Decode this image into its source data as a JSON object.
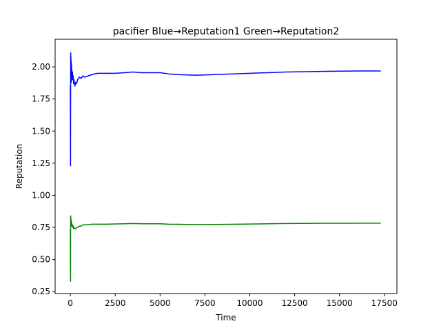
{
  "chart_data": {
    "type": "line",
    "title": "pacifier Blue→Reputation1 Green→Reputation2",
    "xlabel": "Time",
    "ylabel": "Reputation",
    "xlim": [
      -850,
      18200
    ],
    "ylim": [
      0.235,
      2.215
    ],
    "grid": false,
    "xticks": [
      0,
      2500,
      5000,
      7500,
      10000,
      12500,
      15000,
      17500
    ],
    "xtick_labels": [
      "0",
      "2500",
      "5000",
      "7500",
      "10000",
      "12500",
      "15000",
      "17500"
    ],
    "yticks": [
      0.25,
      0.5,
      0.75,
      1.0,
      1.25,
      1.5,
      1.75,
      2.0
    ],
    "ytick_labels": [
      "0.25",
      "0.50",
      "0.75",
      "1.00",
      "1.25",
      "1.50",
      "1.75",
      "2.00"
    ],
    "series": [
      {
        "color": "#0000ff",
        "x": [
          0,
          5,
          10,
          15,
          20,
          25,
          30,
          35,
          40,
          50,
          60,
          70,
          80,
          100,
          120,
          140,
          160,
          180,
          200,
          250,
          300,
          350,
          400,
          500,
          600,
          700,
          800,
          1000,
          1200,
          1500,
          2000,
          2500,
          3000,
          3500,
          4000,
          4500,
          5000,
          5500,
          6000,
          6500,
          7000,
          7500,
          8000,
          9000,
          10000,
          11000,
          12000,
          13000,
          14000,
          15000,
          16000,
          17300
        ],
        "y": [
          1.85,
          1.4,
          1.23,
          1.9,
          2.11,
          1.95,
          2.08,
          1.92,
          2.05,
          1.88,
          2.03,
          1.9,
          1.98,
          1.93,
          1.96,
          1.9,
          1.93,
          1.87,
          1.9,
          1.85,
          1.88,
          1.87,
          1.9,
          1.92,
          1.91,
          1.93,
          1.92,
          1.93,
          1.94,
          1.95,
          1.95,
          1.95,
          1.955,
          1.96,
          1.955,
          1.955,
          1.955,
          1.945,
          1.94,
          1.937,
          1.935,
          1.937,
          1.94,
          1.945,
          1.95,
          1.955,
          1.96,
          1.962,
          1.965,
          1.967,
          1.968,
          1.968
        ]
      },
      {
        "color": "#008000",
        "x": [
          0,
          5,
          10,
          15,
          20,
          25,
          30,
          35,
          40,
          50,
          60,
          70,
          80,
          100,
          120,
          140,
          160,
          180,
          200,
          250,
          300,
          350,
          400,
          500,
          600,
          700,
          800,
          1000,
          1200,
          1500,
          2000,
          2500,
          3000,
          3500,
          4000,
          4500,
          5000,
          5500,
          6000,
          6500,
          7000,
          7500,
          8000,
          9000,
          10000,
          11000,
          12000,
          13000,
          14000,
          15000,
          16000,
          17300
        ],
        "y": [
          0.73,
          0.49,
          0.33,
          0.84,
          0.79,
          0.83,
          0.77,
          0.81,
          0.76,
          0.8,
          0.76,
          0.79,
          0.77,
          0.76,
          0.77,
          0.75,
          0.76,
          0.74,
          0.75,
          0.74,
          0.74,
          0.75,
          0.75,
          0.76,
          0.76,
          0.77,
          0.77,
          0.77,
          0.775,
          0.775,
          0.775,
          0.777,
          0.778,
          0.78,
          0.778,
          0.778,
          0.778,
          0.775,
          0.774,
          0.773,
          0.772,
          0.772,
          0.773,
          0.774,
          0.776,
          0.778,
          0.78,
          0.781,
          0.782,
          0.782,
          0.783,
          0.783
        ]
      }
    ]
  }
}
